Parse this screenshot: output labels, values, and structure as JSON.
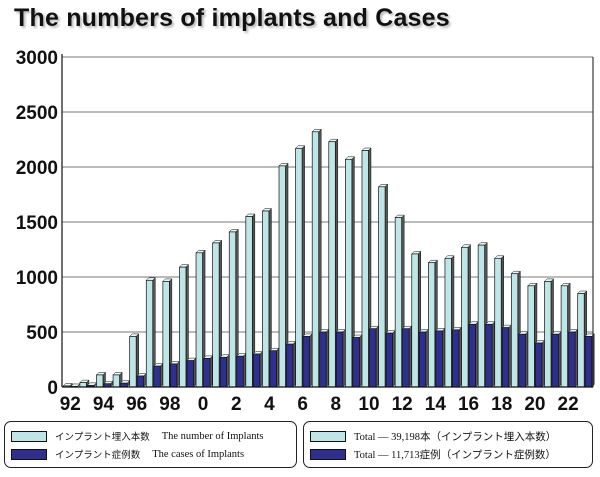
{
  "title": "The numbers of implants and Cases",
  "colors": {
    "implants": "#bfe6e6",
    "cases": "#2f2f8f",
    "grid": "#777777"
  },
  "legend": {
    "left": [
      {
        "jp": "インプラント埋入本数",
        "en": "The number of Implants",
        "color": "#bfe6e6"
      },
      {
        "jp": "インプラント症例数",
        "en": "The cases of Implants",
        "color": "#2f2f8f"
      }
    ],
    "right": [
      {
        "text": "Total ― 39,198本（インプラント埋入本数）",
        "color": "#bfe6e6"
      },
      {
        "text": "Total ― 11,713症例（インプラント症例数）",
        "color": "#2f2f8f"
      }
    ]
  },
  "chart_data": {
    "type": "bar",
    "title": "The numbers of implants and Cases",
    "ylim": [
      0,
      3000
    ],
    "yticks": [
      "0",
      "500",
      "1000",
      "1500",
      "2000",
      "2500",
      "3000"
    ],
    "ytick_values": [
      0,
      500,
      1000,
      1500,
      2000,
      2500,
      3000
    ],
    "categories": [
      "92",
      "93",
      "94",
      "95",
      "96",
      "97",
      "98",
      "99",
      "0",
      "1",
      "2",
      "3",
      "4",
      "5",
      "6",
      "7",
      "8",
      "9",
      "10",
      "11",
      "12",
      "13",
      "14",
      "15",
      "16",
      "17",
      "18",
      "19",
      "20",
      "21",
      "22",
      "23"
    ],
    "xtick_labels": [
      "92",
      "",
      "94",
      "",
      "96",
      "",
      "98",
      "",
      "0",
      "",
      "2",
      "",
      "4",
      "",
      "6",
      "",
      "8",
      "",
      "10",
      "",
      "12",
      "",
      "14",
      "",
      "16",
      "",
      "18",
      "",
      "20",
      "",
      "22",
      ""
    ],
    "grid": true,
    "series": [
      {
        "name": "インプラント埋入本数 The number of Implants",
        "values": [
          10,
          40,
          110,
          110,
          460,
          970,
          960,
          1090,
          1220,
          1310,
          1410,
          1550,
          1600,
          2010,
          2170,
          2320,
          2230,
          2070,
          2150,
          1820,
          1540,
          1210,
          1130,
          1170,
          1270,
          1290,
          1170,
          1030,
          920,
          960,
          920,
          850
        ]
      },
      {
        "name": "インプラント症例数 The cases of Implants",
        "values": [
          5,
          15,
          30,
          35,
          100,
          190,
          210,
          240,
          260,
          270,
          280,
          300,
          330,
          390,
          460,
          500,
          500,
          450,
          530,
          490,
          530,
          500,
          510,
          520,
          570,
          570,
          540,
          480,
          400,
          480,
          500,
          460
        ]
      }
    ]
  }
}
